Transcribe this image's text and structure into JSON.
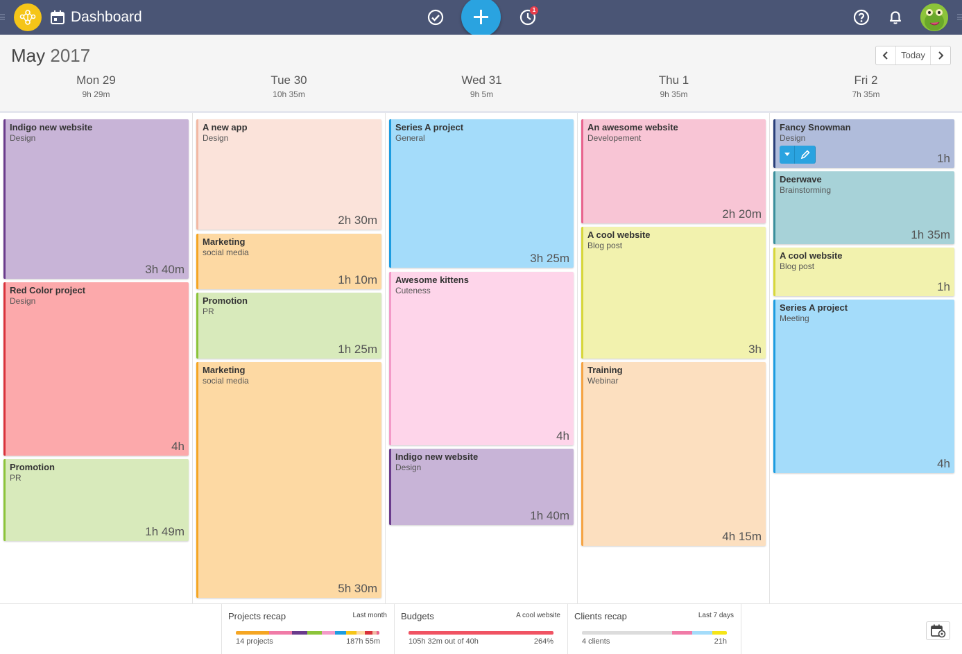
{
  "app": {
    "title": "Dashboard",
    "timer_badge": "1"
  },
  "icons": {
    "logo": "team-logo-icon",
    "calendar": "calendar-icon",
    "check": "check-circle-icon",
    "add": "plus-icon",
    "timer": "timer-icon",
    "help": "help-icon",
    "bell": "bell-icon",
    "avatar": "user-avatar",
    "settings": "calendar-settings-icon"
  },
  "header": {
    "month_name": "May",
    "year": "2017",
    "today_label": "Today"
  },
  "days": [
    {
      "label": "Mon 29",
      "total": "9h 29m"
    },
    {
      "label": "Tue 30",
      "total": "10h 35m"
    },
    {
      "label": "Wed 31",
      "total": "9h 5m"
    },
    {
      "label": "Thu 1",
      "total": "9h 35m"
    },
    {
      "label": "Fri 2",
      "total": "7h 35m"
    }
  ],
  "cards": [
    {
      "title": "Indigo new website",
      "sub": "Design",
      "dur": "3h 40m",
      "color": "#c8b4d7",
      "border": "#6a3b8c"
    },
    {
      "title": "Red Color project",
      "sub": "Design",
      "dur": "4h",
      "color": "#fca9ab",
      "border": "#d9323a"
    },
    {
      "title": "Promotion",
      "sub": "PR",
      "dur": "1h 49m",
      "color": "#d8eabb",
      "border": "#8cc43a"
    },
    {
      "title": "A new app",
      "sub": "Design",
      "dur": "2h 30m",
      "color": "#fbe3da",
      "border": "#f2b9a4"
    },
    {
      "title": "Marketing",
      "sub": "social media",
      "dur": "1h 10m",
      "color": "#fdd9a3",
      "border": "#f5a623"
    },
    {
      "title": "Promotion",
      "sub": "PR",
      "dur": "1h 25m",
      "color": "#d8eabb",
      "border": "#8cc43a"
    },
    {
      "title": "Marketing",
      "sub": "social media",
      "dur": "5h 30m",
      "color": "#fdd9a3",
      "border": "#f5a623"
    },
    {
      "title": "Series A project",
      "sub": "General",
      "dur": "3h 25m",
      "color": "#a4dcfa",
      "border": "#1c9ce0"
    },
    {
      "title": "Awesome kittens",
      "sub": "Cuteness",
      "dur": "4h",
      "color": "#fed5ea",
      "border": "#f39ac8"
    },
    {
      "title": "Indigo new website",
      "sub": "Design",
      "dur": "1h 40m",
      "color": "#c8b4d7",
      "border": "#6a3b8c"
    },
    {
      "title": "An awesome website",
      "sub": "Developement",
      "dur": "2h 20m",
      "color": "#f8c5d5",
      "border": "#e8648e"
    },
    {
      "title": "A cool website",
      "sub": "Blog post",
      "dur": "3h",
      "color": "#f2f2ae",
      "border": "#d7d73b"
    },
    {
      "title": "Training",
      "sub": "Webinar",
      "dur": "4h 15m",
      "color": "#fcdfbf",
      "border": "#f5a343"
    },
    {
      "title": "Fancy Snowman",
      "sub": "Design",
      "dur": "1h",
      "color": "#b0bcdb",
      "border": "#2a3f7a"
    },
    {
      "title": "Deerwave",
      "sub": "Brainstorming",
      "dur": "1h 35m",
      "color": "#a7d2d8",
      "border": "#3a8f9c"
    },
    {
      "title": "A cool website",
      "sub": "Blog post",
      "dur": "1h",
      "color": "#f2f2ae",
      "border": "#d7d73b"
    },
    {
      "title": "Series A project",
      "sub": "Meeting",
      "dur": "4h",
      "color": "#a4dcfa",
      "border": "#1c9ce0"
    }
  ],
  "footer": {
    "projects": {
      "title": "Projects recap",
      "period": "Last month",
      "left": "14 projects",
      "right": "187h 55m",
      "segments": [
        {
          "share": 0.23,
          "color": "#f5a623"
        },
        {
          "share": 0.16,
          "color": "#f07ba7"
        },
        {
          "share": 0.11,
          "color": "#6a3b8c"
        },
        {
          "share": 0.1,
          "color": "#8cc43a"
        },
        {
          "share": 0.09,
          "color": "#f39ac8"
        },
        {
          "share": 0.08,
          "color": "#1c9ce0"
        },
        {
          "share": 0.07,
          "color": "#f5c518"
        },
        {
          "share": 0.06,
          "color": "#fdd9a3"
        },
        {
          "share": 0.05,
          "color": "#d9323a"
        },
        {
          "share": 0.03,
          "color": "#f2b9a4"
        },
        {
          "share": 0.02,
          "color": "#e8648e"
        }
      ]
    },
    "budgets": {
      "title": "Budgets",
      "period": "A cool website",
      "left": "105h 32m out of 40h",
      "right": "264%",
      "segments": [
        {
          "share": 1.0,
          "color": "#f05363"
        }
      ]
    },
    "clients": {
      "title": "Clients recap",
      "period": "Last 7 days",
      "left": "4 clients",
      "right": "21h",
      "segments": [
        {
          "share": 0.62,
          "color": "#dcdcdc"
        },
        {
          "share": 0.14,
          "color": "#f07ba7"
        },
        {
          "share": 0.14,
          "color": "#a4dcfa"
        },
        {
          "share": 0.1,
          "color": "#f5e518"
        }
      ]
    }
  }
}
